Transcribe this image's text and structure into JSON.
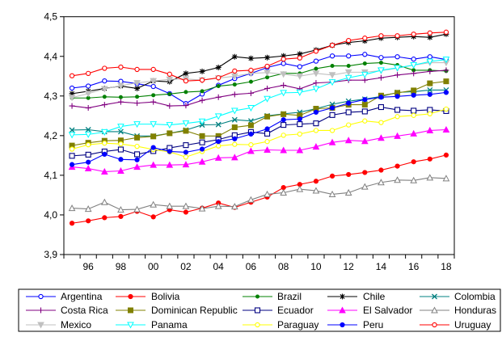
{
  "chart_data": {
    "type": "line",
    "title": "",
    "xlabel": "",
    "ylabel": "",
    "ylim": [
      3.9,
      4.5
    ],
    "xlim": [
      1995,
      2018
    ],
    "grid": false,
    "legend_position": "bottom",
    "y_ticks": [
      {
        "v": 3.9,
        "label": "3,9"
      },
      {
        "v": 4.0,
        "label": "4,0"
      },
      {
        "v": 4.1,
        "label": "4,1"
      },
      {
        "v": 4.2,
        "label": "4,2"
      },
      {
        "v": 4.3,
        "label": "4,3"
      },
      {
        "v": 4.4,
        "label": "4,4"
      },
      {
        "v": 4.5,
        "label": "4,5"
      }
    ],
    "x_ticks": [
      {
        "v": 1996,
        "label": "96"
      },
      {
        "v": 1998,
        "label": "98"
      },
      {
        "v": 2000,
        "label": "00"
      },
      {
        "v": 2002,
        "label": "02"
      },
      {
        "v": 2004,
        "label": "04"
      },
      {
        "v": 2006,
        "label": "06"
      },
      {
        "v": 2008,
        "label": "08"
      },
      {
        "v": 2010,
        "label": "10"
      },
      {
        "v": 2012,
        "label": "12"
      },
      {
        "v": 2014,
        "label": "14"
      },
      {
        "v": 2016,
        "label": "16"
      },
      {
        "v": 2018,
        "label": "18"
      }
    ],
    "x": [
      1995,
      1996,
      1997,
      1998,
      1999,
      2000,
      2001,
      2002,
      2003,
      2004,
      2005,
      2006,
      2007,
      2008,
      2009,
      2010,
      2011,
      2012,
      2013,
      2014,
      2015,
      2016,
      2017,
      2018
    ],
    "series": [
      {
        "name": "Argentina",
        "color": "#0000ff",
        "marker": "circle-open",
        "values": [
          4.32,
          4.325,
          4.338,
          4.337,
          4.331,
          4.324,
          4.306,
          4.281,
          4.305,
          4.327,
          4.344,
          4.357,
          4.372,
          4.382,
          4.374,
          4.388,
          4.401,
          4.401,
          4.405,
          4.397,
          4.399,
          4.393,
          4.399,
          4.392
        ]
      },
      {
        "name": "Bolivia",
        "color": "#ff0000",
        "marker": "circle-filled",
        "values": [
          3.979,
          3.985,
          3.993,
          3.996,
          4.009,
          3.995,
          4.013,
          4.007,
          4.017,
          4.03,
          4.019,
          4.032,
          4.045,
          4.069,
          4.077,
          4.085,
          4.098,
          4.102,
          4.107,
          4.113,
          4.123,
          4.134,
          4.141,
          4.151
        ]
      },
      {
        "name": "Brazil",
        "color": "#008000",
        "marker": "circle-small",
        "values": [
          4.295,
          4.295,
          4.298,
          4.297,
          4.298,
          4.302,
          4.305,
          4.31,
          4.312,
          4.325,
          4.329,
          4.336,
          4.347,
          4.357,
          4.357,
          4.369,
          4.376,
          4.376,
          4.382,
          4.384,
          4.378,
          4.365,
          4.365,
          4.363
        ]
      },
      {
        "name": "Chile",
        "color": "#000000",
        "marker": "asterisk",
        "values": [
          4.306,
          4.312,
          4.319,
          4.325,
          4.319,
          4.338,
          4.336,
          4.357,
          4.362,
          4.372,
          4.399,
          4.395,
          4.397,
          4.401,
          4.406,
          4.416,
          4.428,
          4.435,
          4.439,
          4.446,
          4.448,
          4.45,
          4.448,
          4.456
        ]
      },
      {
        "name": "Colombia",
        "color": "#008080",
        "marker": "x",
        "values": [
          4.214,
          4.215,
          4.21,
          4.21,
          4.199,
          4.199,
          4.206,
          4.214,
          4.227,
          4.228,
          4.24,
          4.237,
          4.25,
          4.255,
          4.259,
          4.268,
          4.279,
          4.287,
          4.292,
          4.299,
          4.309,
          4.311,
          4.315,
          4.315
        ]
      },
      {
        "name": "Costa Rica",
        "color": "#800080",
        "marker": "plus",
        "values": [
          4.275,
          4.27,
          4.278,
          4.285,
          4.282,
          4.285,
          4.275,
          4.276,
          4.289,
          4.297,
          4.304,
          4.307,
          4.319,
          4.327,
          4.318,
          4.333,
          4.335,
          4.34,
          4.34,
          4.346,
          4.353,
          4.357,
          4.362,
          4.365
        ]
      },
      {
        "name": "Dominican Republic",
        "color": "#808000",
        "marker": "square-filled",
        "values": [
          4.175,
          4.182,
          4.187,
          4.188,
          4.195,
          4.198,
          4.206,
          4.212,
          4.199,
          4.199,
          4.221,
          4.226,
          4.248,
          4.254,
          4.251,
          4.268,
          4.27,
          4.278,
          4.278,
          4.301,
          4.308,
          4.314,
          4.332,
          4.337
        ]
      },
      {
        "name": "Ecuador",
        "color": "#000080",
        "marker": "square-open",
        "values": [
          4.149,
          4.152,
          4.16,
          4.165,
          4.153,
          4.161,
          4.169,
          4.176,
          4.183,
          4.19,
          4.201,
          4.209,
          4.205,
          4.227,
          4.229,
          4.231,
          4.252,
          4.259,
          4.261,
          4.272,
          4.265,
          4.263,
          4.265,
          4.262
        ]
      },
      {
        "name": "El Salvador",
        "color": "#ff00ff",
        "marker": "triangle-filled",
        "values": [
          4.121,
          4.117,
          4.109,
          4.111,
          4.121,
          4.126,
          4.126,
          4.127,
          4.134,
          4.144,
          4.145,
          4.161,
          4.164,
          4.163,
          4.163,
          4.172,
          4.183,
          4.188,
          4.186,
          4.194,
          4.199,
          4.205,
          4.213,
          4.215
        ]
      },
      {
        "name": "Honduras",
        "color": "#808080",
        "marker": "triangle-open",
        "values": [
          4.017,
          4.015,
          4.032,
          4.013,
          4.014,
          4.026,
          4.022,
          4.022,
          4.016,
          4.022,
          4.021,
          4.038,
          4.052,
          4.056,
          4.065,
          4.061,
          4.052,
          4.056,
          4.071,
          4.082,
          4.088,
          4.087,
          4.094,
          4.092
        ]
      },
      {
        "name": "Mexico",
        "color": "#c0c0c0",
        "marker": "triangle-down-filled",
        "values": [
          4.296,
          4.306,
          4.318,
          4.326,
          4.333,
          4.338,
          4.342,
          4.343,
          4.34,
          4.345,
          4.35,
          4.357,
          4.359,
          4.355,
          4.35,
          4.357,
          4.353,
          4.36,
          4.36,
          4.364,
          4.37,
          4.378,
          4.384,
          4.384
        ]
      },
      {
        "name": "Panama",
        "color": "#00ffff",
        "marker": "triangle-down-open",
        "values": [
          4.202,
          4.203,
          4.209,
          4.223,
          4.229,
          4.229,
          4.227,
          4.231,
          4.236,
          4.249,
          4.263,
          4.27,
          4.293,
          4.308,
          4.309,
          4.318,
          4.335,
          4.346,
          4.354,
          4.365,
          4.371,
          4.378,
          4.387,
          4.392
        ]
      },
      {
        "name": "Paraguay",
        "color": "#ffff00",
        "marker": "circle-open",
        "values": [
          4.166,
          4.177,
          4.181,
          4.179,
          4.173,
          4.165,
          4.159,
          4.146,
          4.16,
          4.174,
          4.178,
          4.177,
          4.185,
          4.201,
          4.204,
          4.213,
          4.213,
          4.227,
          4.237,
          4.233,
          4.248,
          4.251,
          4.255,
          4.267
        ]
      },
      {
        "name": "Peru",
        "color": "#0000ff",
        "marker": "circle-filled",
        "values": [
          4.127,
          4.133,
          4.153,
          4.14,
          4.139,
          4.17,
          4.16,
          4.158,
          4.166,
          4.185,
          4.192,
          4.204,
          4.217,
          4.24,
          4.242,
          4.259,
          4.27,
          4.282,
          4.291,
          4.297,
          4.299,
          4.302,
          4.304,
          4.309
        ]
      },
      {
        "name": "Uruguay",
        "color": "#ff0000",
        "marker": "circle-open",
        "values": [
          4.351,
          4.357,
          4.37,
          4.373,
          4.367,
          4.367,
          4.355,
          4.338,
          4.34,
          4.346,
          4.363,
          4.365,
          4.375,
          4.393,
          4.396,
          4.413,
          4.428,
          4.44,
          4.446,
          4.452,
          4.452,
          4.456,
          4.459,
          4.461
        ]
      }
    ]
  }
}
